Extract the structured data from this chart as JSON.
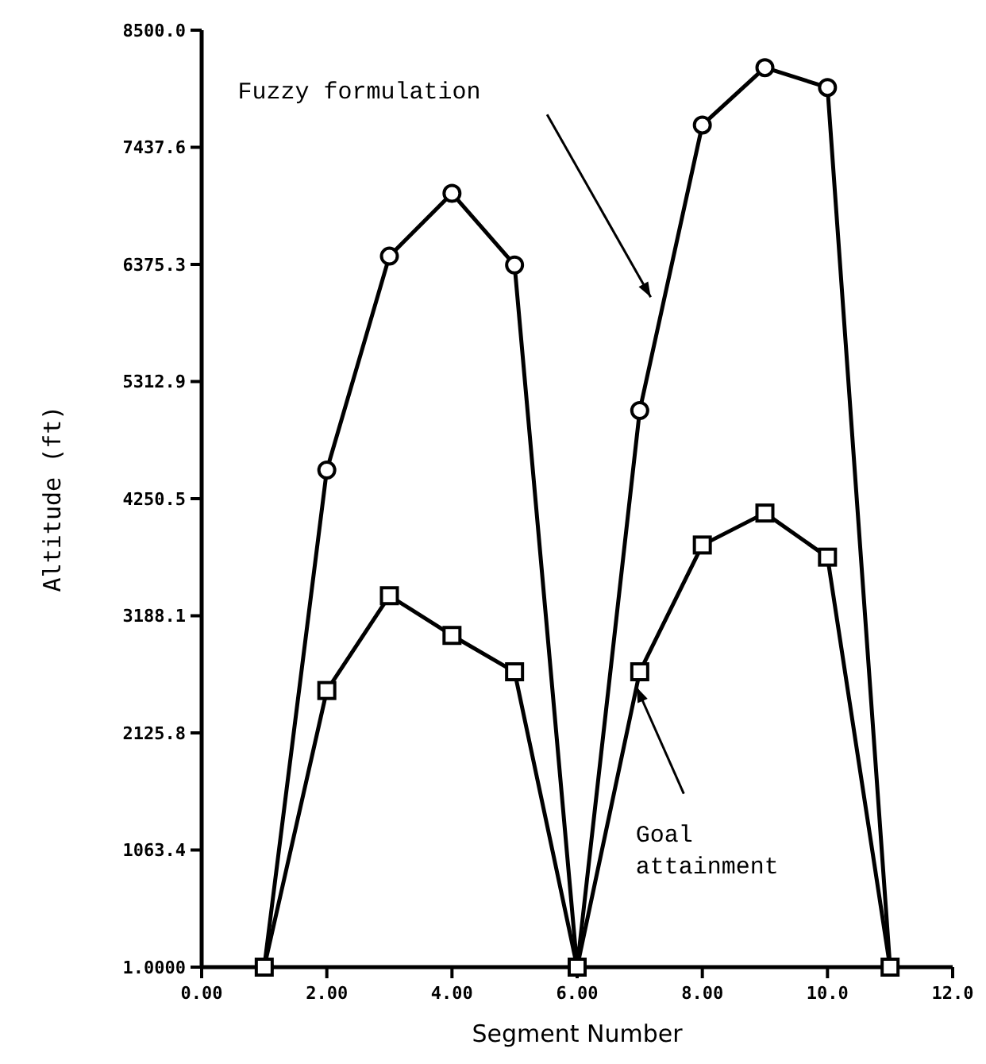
{
  "chart_data": {
    "type": "line",
    "xlabel": "Segment Number",
    "ylabel": "Altitude (ft)",
    "x": [
      1,
      2,
      3,
      4,
      5,
      6,
      7,
      8,
      9,
      10,
      11
    ],
    "series": [
      {
        "color": "#000000",
        "marker": "circle",
        "values": [
          1,
          4510,
          6450,
          7020,
          6370,
          1,
          5050,
          7640,
          8160,
          7980,
          1
        ]
      },
      {
        "color": "#000000",
        "marker": "square",
        "values": [
          1,
          2510,
          3370,
          3010,
          2680,
          1,
          2680,
          3830,
          4120,
          3720,
          1
        ]
      }
    ],
    "xlim": [
      0,
      12
    ],
    "ylim": [
      1,
      8500
    ],
    "xticks": [
      {
        "value": 0,
        "label": "0.00"
      },
      {
        "value": 2,
        "label": "2.00"
      },
      {
        "value": 4,
        "label": "4.00"
      },
      {
        "value": 6,
        "label": "6.00"
      },
      {
        "value": 8,
        "label": "8.00"
      },
      {
        "value": 10,
        "label": "10.0"
      },
      {
        "value": 12,
        "label": "12.0"
      }
    ],
    "yticks": [
      {
        "value": 1,
        "label": "1.0000"
      },
      {
        "value": 1063.4,
        "label": "1063.4"
      },
      {
        "value": 2125.8,
        "label": "2125.8"
      },
      {
        "value": 3188.1,
        "label": "3188.1"
      },
      {
        "value": 4250.5,
        "label": "4250.5"
      },
      {
        "value": 5312.9,
        "label": "5312.9"
      },
      {
        "value": 6375.3,
        "label": "6375.3"
      },
      {
        "value": 7437.6,
        "label": "7437.6"
      },
      {
        "value": 8500,
        "label": "8500.0"
      }
    ],
    "annotations": [
      "Fuzzy formulation",
      {
        "text": "Goal\nattainment",
        "x": 6.95,
        "y": 2540
      }
    ],
    "grid": false,
    "line_style": "solid"
  }
}
